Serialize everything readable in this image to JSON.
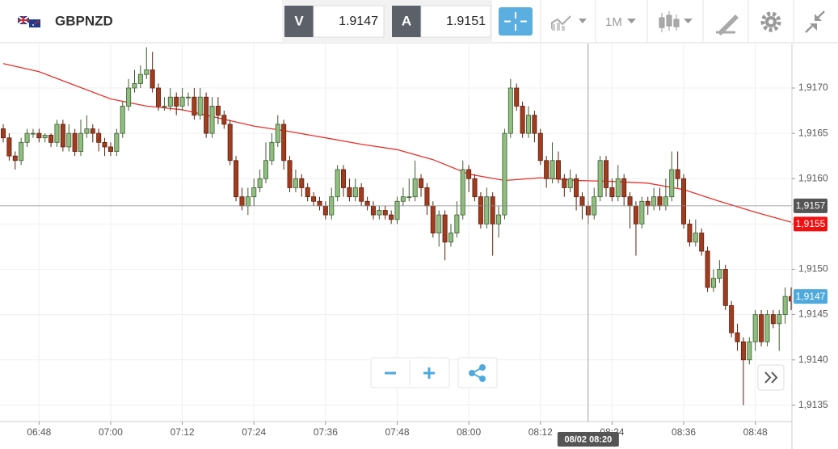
{
  "toolbar": {
    "symbol": "GBPNZD",
    "bid_label": "V",
    "bid": "1.9147",
    "ask_label": "A",
    "ask": "1.9151",
    "timeframe": "1M"
  },
  "chart_data": {
    "type": "candlestick",
    "x": [
      "06:42",
      "06:43",
      "06:44",
      "06:45",
      "06:46",
      "06:47",
      "06:48",
      "06:49",
      "06:50",
      "06:51",
      "06:52",
      "06:53",
      "06:54",
      "06:55",
      "06:56",
      "06:57",
      "06:58",
      "06:59",
      "07:00",
      "07:01",
      "07:02",
      "07:03",
      "07:04",
      "07:05",
      "07:06",
      "07:07",
      "07:08",
      "07:09",
      "07:10",
      "07:11",
      "07:12",
      "07:13",
      "07:14",
      "07:15",
      "07:16",
      "07:17",
      "07:18",
      "07:19",
      "07:20",
      "07:21",
      "07:22",
      "07:23",
      "07:24",
      "07:25",
      "07:26",
      "07:27",
      "07:28",
      "07:29",
      "07:30",
      "07:31",
      "07:32",
      "07:33",
      "07:34",
      "07:35",
      "07:36",
      "07:37",
      "07:38",
      "07:39",
      "07:40",
      "07:41",
      "07:42",
      "07:43",
      "07:44",
      "07:45",
      "07:46",
      "07:47",
      "07:48",
      "07:49",
      "07:50",
      "07:51",
      "07:52",
      "07:53",
      "07:54",
      "07:55",
      "07:56",
      "07:57",
      "07:58",
      "07:59",
      "08:00",
      "08:01",
      "08:02",
      "08:03",
      "08:04",
      "08:05",
      "08:06",
      "08:07",
      "08:08",
      "08:09",
      "08:10",
      "08:11",
      "08:12",
      "08:13",
      "08:14",
      "08:15",
      "08:16",
      "08:17",
      "08:18",
      "08:19",
      "08:20",
      "08:21",
      "08:22",
      "08:23",
      "08:24",
      "08:25",
      "08:26",
      "08:27",
      "08:28",
      "08:29",
      "08:30",
      "08:31",
      "08:32",
      "08:33",
      "08:34",
      "08:35",
      "08:36",
      "08:37",
      "08:38",
      "08:39",
      "08:40",
      "08:41",
      "08:42",
      "08:43",
      "08:44",
      "08:45",
      "08:46",
      "08:47",
      "08:48",
      "08:49",
      "08:50",
      "08:51",
      "08:52",
      "08:53",
      "08:54"
    ],
    "open": [
      1.91655,
      1.91645,
      1.91625,
      1.9162,
      1.9164,
      1.9165,
      1.9165,
      1.91645,
      1.91648,
      1.9164,
      1.9166,
      1.91635,
      1.9165,
      1.9163,
      1.9165,
      1.91655,
      1.9165,
      1.9164,
      1.91635,
      1.9163,
      1.9165,
      1.9168,
      1.917,
      1.91705,
      1.91715,
      1.9172,
      1.917,
      1.9168,
      1.9168,
      1.9169,
      1.9168,
      1.9169,
      1.9169,
      1.9167,
      1.9169,
      1.9165,
      1.9168,
      1.9167,
      1.9166,
      1.9162,
      1.9158,
      1.9157,
      1.9158,
      1.9159,
      1.916,
      1.9162,
      1.9164,
      1.9166,
      1.9162,
      1.9159,
      1.916,
      1.9159,
      1.9158,
      1.91575,
      1.9157,
      1.9156,
      1.9158,
      1.9161,
      1.9159,
      1.9158,
      1.9159,
      1.91575,
      1.9157,
      1.9156,
      1.91565,
      1.9156,
      1.91555,
      1.91575,
      1.9158,
      1.9158,
      1.916,
      1.9159,
      1.9157,
      1.9154,
      1.9156,
      1.9153,
      1.9154,
      1.9156,
      1.9161,
      1.916,
      1.9158,
      1.9155,
      1.9158,
      1.9155,
      1.9156,
      1.9165,
      1.917,
      1.9168,
      1.9165,
      1.9167,
      1.9165,
      1.9162,
      1.916,
      1.9162,
      1.916,
      1.9159,
      1.916,
      1.9158,
      1.9157,
      1.9156,
      1.9158,
      1.9162,
      1.9159,
      1.9158,
      1.916,
      1.9158,
      1.9157,
      1.9155,
      1.91575,
      1.9157,
      1.9158,
      1.9157,
      1.9158,
      1.9161,
      1.916,
      1.9155,
      1.9153,
      1.9154,
      1.9152,
      1.9148,
      1.9149,
      1.915,
      1.9146,
      1.9143,
      1.9142,
      1.914,
      1.9142,
      1.9145,
      1.9142,
      1.9145,
      1.9144,
      1.9145,
      1.9147
    ],
    "high": [
      1.9166,
      1.9165,
      1.9163,
      1.91645,
      1.91655,
      1.91655,
      1.91655,
      1.9165,
      1.9165,
      1.91665,
      1.91665,
      1.9166,
      1.91655,
      1.91665,
      1.9167,
      1.9166,
      1.91655,
      1.91645,
      1.9164,
      1.91655,
      1.91685,
      1.9171,
      1.9172,
      1.91725,
      1.91745,
      1.9174,
      1.91705,
      1.9169,
      1.917,
      1.91695,
      1.917,
      1.91695,
      1.917,
      1.917,
      1.91695,
      1.9169,
      1.9169,
      1.91675,
      1.91665,
      1.91625,
      1.9159,
      1.9159,
      1.916,
      1.9161,
      1.9164,
      1.9165,
      1.9167,
      1.91665,
      1.91625,
      1.9161,
      1.91605,
      1.91595,
      1.91585,
      1.9158,
      1.91575,
      1.9159,
      1.91615,
      1.91615,
      1.916,
      1.916,
      1.91595,
      1.9158,
      1.91575,
      1.9157,
      1.9157,
      1.91565,
      1.9158,
      1.9159,
      1.916,
      1.9162,
      1.91605,
      1.91595,
      1.91575,
      1.91565,
      1.91565,
      1.9155,
      1.91575,
      1.9162,
      1.91615,
      1.91605,
      1.91585,
      1.9159,
      1.91585,
      1.9157,
      1.91655,
      1.9171,
      1.91705,
      1.91685,
      1.9168,
      1.91675,
      1.91655,
      1.91625,
      1.9164,
      1.9163,
      1.91605,
      1.9161,
      1.91605,
      1.91585,
      1.91575,
      1.9159,
      1.91625,
      1.91625,
      1.916,
      1.91615,
      1.91605,
      1.91585,
      1.91575,
      1.9158,
      1.9158,
      1.9159,
      1.9159,
      1.916,
      1.9163,
      1.9163,
      1.91605,
      1.91555,
      1.91555,
      1.91545,
      1.91525,
      1.915,
      1.9151,
      1.91505,
      1.91465,
      1.9144,
      1.91425,
      1.91425,
      1.91455,
      1.91455,
      1.91455,
      1.91455,
      1.91455,
      1.9148,
      1.9148
    ],
    "low": [
      1.9164,
      1.9162,
      1.9161,
      1.91615,
      1.91635,
      1.91645,
      1.9164,
      1.9164,
      1.91635,
      1.91635,
      1.9163,
      1.9163,
      1.91625,
      1.91625,
      1.91645,
      1.9164,
      1.9163,
      1.91625,
      1.91625,
      1.91625,
      1.91645,
      1.91675,
      1.91695,
      1.917,
      1.9171,
      1.91695,
      1.91675,
      1.91675,
      1.91675,
      1.9167,
      1.91675,
      1.9168,
      1.91665,
      1.91665,
      1.91645,
      1.91645,
      1.9166,
      1.91655,
      1.91615,
      1.91575,
      1.91565,
      1.9156,
      1.9157,
      1.91585,
      1.91595,
      1.91615,
      1.91635,
      1.9161,
      1.91585,
      1.91585,
      1.9158,
      1.91575,
      1.9157,
      1.91565,
      1.91555,
      1.91555,
      1.91575,
      1.9158,
      1.91575,
      1.91575,
      1.9157,
      1.91565,
      1.91555,
      1.91555,
      1.91555,
      1.9155,
      1.9155,
      1.9157,
      1.91575,
      1.91575,
      1.9158,
      1.9156,
      1.91535,
      1.91525,
      1.9151,
      1.91525,
      1.91535,
      1.91555,
      1.91585,
      1.91575,
      1.91545,
      1.91545,
      1.91515,
      1.91535,
      1.91555,
      1.91645,
      1.91675,
      1.91645,
      1.91645,
      1.9164,
      1.91615,
      1.9159,
      1.91595,
      1.91595,
      1.9158,
      1.91585,
      1.91565,
      1.91555,
      1.9155,
      1.91555,
      1.91575,
      1.9158,
      1.91575,
      1.91575,
      1.9157,
      1.91545,
      1.91515,
      1.91545,
      1.9156,
      1.91565,
      1.91565,
      1.91565,
      1.91575,
      1.9159,
      1.91545,
      1.91525,
      1.91525,
      1.91515,
      1.91475,
      1.91475,
      1.91485,
      1.91455,
      1.91425,
      1.9141,
      1.9135,
      1.91395,
      1.9141,
      1.91415,
      1.91415,
      1.91435,
      1.9141,
      1.9144,
      1.91455
    ],
    "close": [
      1.91645,
      1.91625,
      1.9162,
      1.9164,
      1.9165,
      1.9165,
      1.91645,
      1.91648,
      1.9164,
      1.9166,
      1.91635,
      1.9165,
      1.9163,
      1.9165,
      1.91655,
      1.9165,
      1.9164,
      1.91635,
      1.9163,
      1.9165,
      1.9168,
      1.917,
      1.91705,
      1.91715,
      1.9172,
      1.917,
      1.9168,
      1.9168,
      1.9169,
      1.9168,
      1.9169,
      1.9169,
      1.9167,
      1.9169,
      1.9165,
      1.9168,
      1.9167,
      1.9166,
      1.9162,
      1.9158,
      1.9157,
      1.9158,
      1.9159,
      1.916,
      1.9162,
      1.9164,
      1.9166,
      1.9162,
      1.9159,
      1.916,
      1.9159,
      1.9158,
      1.91575,
      1.9157,
      1.9156,
      1.9158,
      1.9161,
      1.9159,
      1.9158,
      1.9159,
      1.91575,
      1.9157,
      1.9156,
      1.91565,
      1.9156,
      1.91555,
      1.91575,
      1.9158,
      1.9158,
      1.916,
      1.9159,
      1.9157,
      1.9154,
      1.9156,
      1.9153,
      1.9154,
      1.9156,
      1.9161,
      1.916,
      1.9158,
      1.9155,
      1.9158,
      1.9155,
      1.9156,
      1.9165,
      1.917,
      1.9168,
      1.9165,
      1.9167,
      1.9165,
      1.9162,
      1.916,
      1.9162,
      1.916,
      1.9159,
      1.916,
      1.9158,
      1.9157,
      1.9156,
      1.9158,
      1.9162,
      1.9159,
      1.9158,
      1.916,
      1.9158,
      1.9157,
      1.9155,
      1.91575,
      1.9157,
      1.9158,
      1.9157,
      1.9158,
      1.9161,
      1.916,
      1.9155,
      1.9153,
      1.9154,
      1.9152,
      1.9148,
      1.9149,
      1.915,
      1.9146,
      1.9143,
      1.9142,
      1.914,
      1.9142,
      1.9145,
      1.9142,
      1.9145,
      1.9144,
      1.9145,
      1.9147,
      1.91465
    ],
    "up_color": "#8fbf7f",
    "down_color": "#a23c1e",
    "ma": {
      "color": "#e8302a",
      "x": [
        "06:42",
        "06:48",
        "06:54",
        "07:00",
        "07:06",
        "07:12",
        "07:18",
        "07:24",
        "07:30",
        "07:36",
        "07:42",
        "07:48",
        "07:54",
        "08:00",
        "08:06",
        "08:12",
        "08:18",
        "08:24",
        "08:30",
        "08:36",
        "08:42",
        "08:48",
        "08:54"
      ],
      "values": [
        1.91727,
        1.91718,
        1.91703,
        1.91688,
        1.9168,
        1.91676,
        1.91667,
        1.91658,
        1.91652,
        1.91645,
        1.91638,
        1.91632,
        1.91621,
        1.91605,
        1.91598,
        1.91601,
        1.91598,
        1.91597,
        1.91595,
        1.91588,
        1.91575,
        1.91563,
        1.91552
      ]
    },
    "xlim": [
      "06:42",
      "08:54"
    ],
    "xticks": [
      "06:48",
      "07:00",
      "07:12",
      "07:24",
      "07:36",
      "07:48",
      "08:00",
      "08:12",
      "08:24",
      "08:36",
      "08:48"
    ],
    "ylim": [
      1.91332,
      1.91749
    ],
    "yticks": [
      {
        "value": 1.9135,
        "label": "1,9135"
      },
      {
        "value": 1.914,
        "label": "1,9140"
      },
      {
        "value": 1.9145,
        "label": "1,9145"
      },
      {
        "value": 1.915,
        "label": "1,9150"
      },
      {
        "value": 1.9155,
        "label": "1,9155"
      },
      {
        "value": 1.916,
        "label": "1,9160"
      },
      {
        "value": 1.9165,
        "label": "1,9165"
      },
      {
        "value": 1.917,
        "label": "1,9170"
      }
    ],
    "grid": true,
    "crosshair": {
      "label": "08/02 08:20",
      "price": {
        "value": 1.9157,
        "label": "1,9157"
      }
    },
    "price_markers": [
      {
        "value": 1.9155,
        "label": "1,9155",
        "color": "#f01010"
      },
      {
        "value": 1.9147,
        "label": "1,9147",
        "color": "#4fa9dc"
      }
    ]
  }
}
